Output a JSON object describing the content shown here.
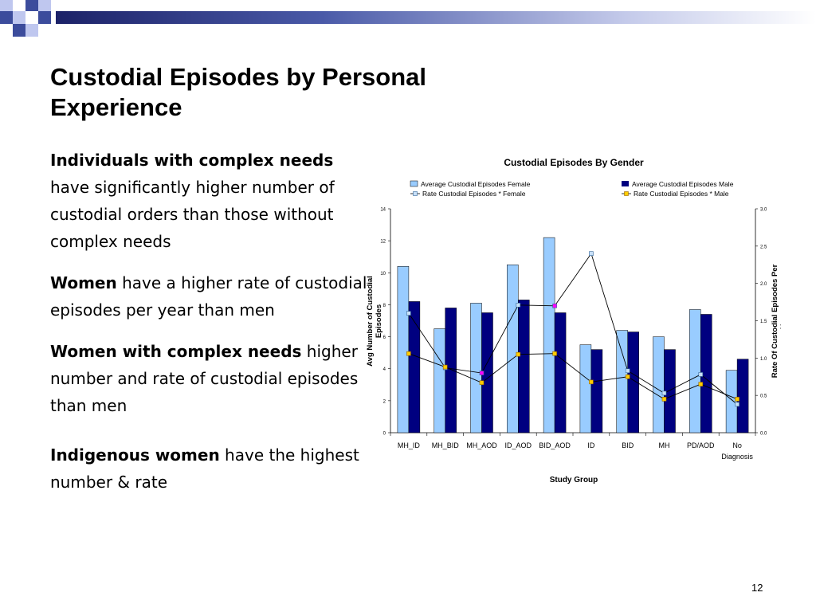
{
  "slide": {
    "title": "Custodial Episodes by Personal Experience",
    "page_number": "12",
    "bullets": [
      {
        "emphasis": "Individuals with complex needs",
        "text": "have significantly higher number of custodial orders than those without complex needs"
      },
      {
        "emphasis": "Women",
        "text": "have a higher rate of custodial episodes per year than men"
      },
      {
        "emphasis": "Women with complex needs",
        "text": "higher number and rate of custodial episodes than men"
      },
      {
        "emphasis": "Indigenous women",
        "text": "have the highest number & rate"
      }
    ]
  },
  "colors": {
    "banner_dark": "#24296b",
    "banner_square": "#3c4c9c",
    "banner_light": "#bfc7ef",
    "female_bar": "#99ccff",
    "male_bar": "#000080",
    "female_marker": "#c8e0f8",
    "male_marker": "#ffcc00",
    "highlight_marker": "#ff00ff"
  },
  "chart_data": {
    "type": "bar",
    "title": "Custodial Episodes By Gender",
    "xlabel": "Study Group",
    "ylabel": "Avg Number of Custodial Episodes",
    "y2label": "Rate Of Custodial Episodes Per Year",
    "ylim": [
      0,
      14
    ],
    "y2lim": [
      0,
      3.0
    ],
    "yticks": [
      "0",
      "2",
      "4",
      "6",
      "8",
      "10",
      "12",
      "14"
    ],
    "y2ticks": [
      "0.0",
      "0.5",
      "1.0",
      "1.5",
      "2.0",
      "2.5",
      "3.0"
    ],
    "categories": [
      "MH_ID",
      "MH_BID",
      "MH_AOD",
      "ID_AOD",
      "BID_AOD",
      "ID",
      "BID",
      "MH",
      "PD/AOD",
      "No Diagnosis"
    ],
    "legend_position": "top",
    "grid": false,
    "series": [
      {
        "name": "Average Custodial Episodes Female",
        "kind": "bar",
        "axis": "left",
        "values": [
          10.4,
          6.5,
          8.1,
          10.5,
          12.2,
          5.5,
          6.4,
          6.0,
          7.7,
          3.9
        ]
      },
      {
        "name": "Average Custodial Episodes Male",
        "kind": "bar",
        "axis": "left",
        "values": [
          8.2,
          7.8,
          7.5,
          8.3,
          7.5,
          5.2,
          6.3,
          5.2,
          7.4,
          4.6
        ]
      },
      {
        "name": "Rate Custodial Episodes * Female",
        "kind": "line",
        "axis": "right",
        "values": [
          1.6,
          0.87,
          0.8,
          1.71,
          1.7,
          2.4,
          0.83,
          0.53,
          0.78,
          0.38
        ],
        "highlight_indices": [
          2,
          4
        ]
      },
      {
        "name": "Rate Custodial Episodes * Male",
        "kind": "line",
        "axis": "right",
        "values": [
          1.06,
          0.88,
          0.67,
          1.05,
          1.06,
          0.68,
          0.75,
          0.45,
          0.65,
          0.45
        ]
      }
    ]
  }
}
